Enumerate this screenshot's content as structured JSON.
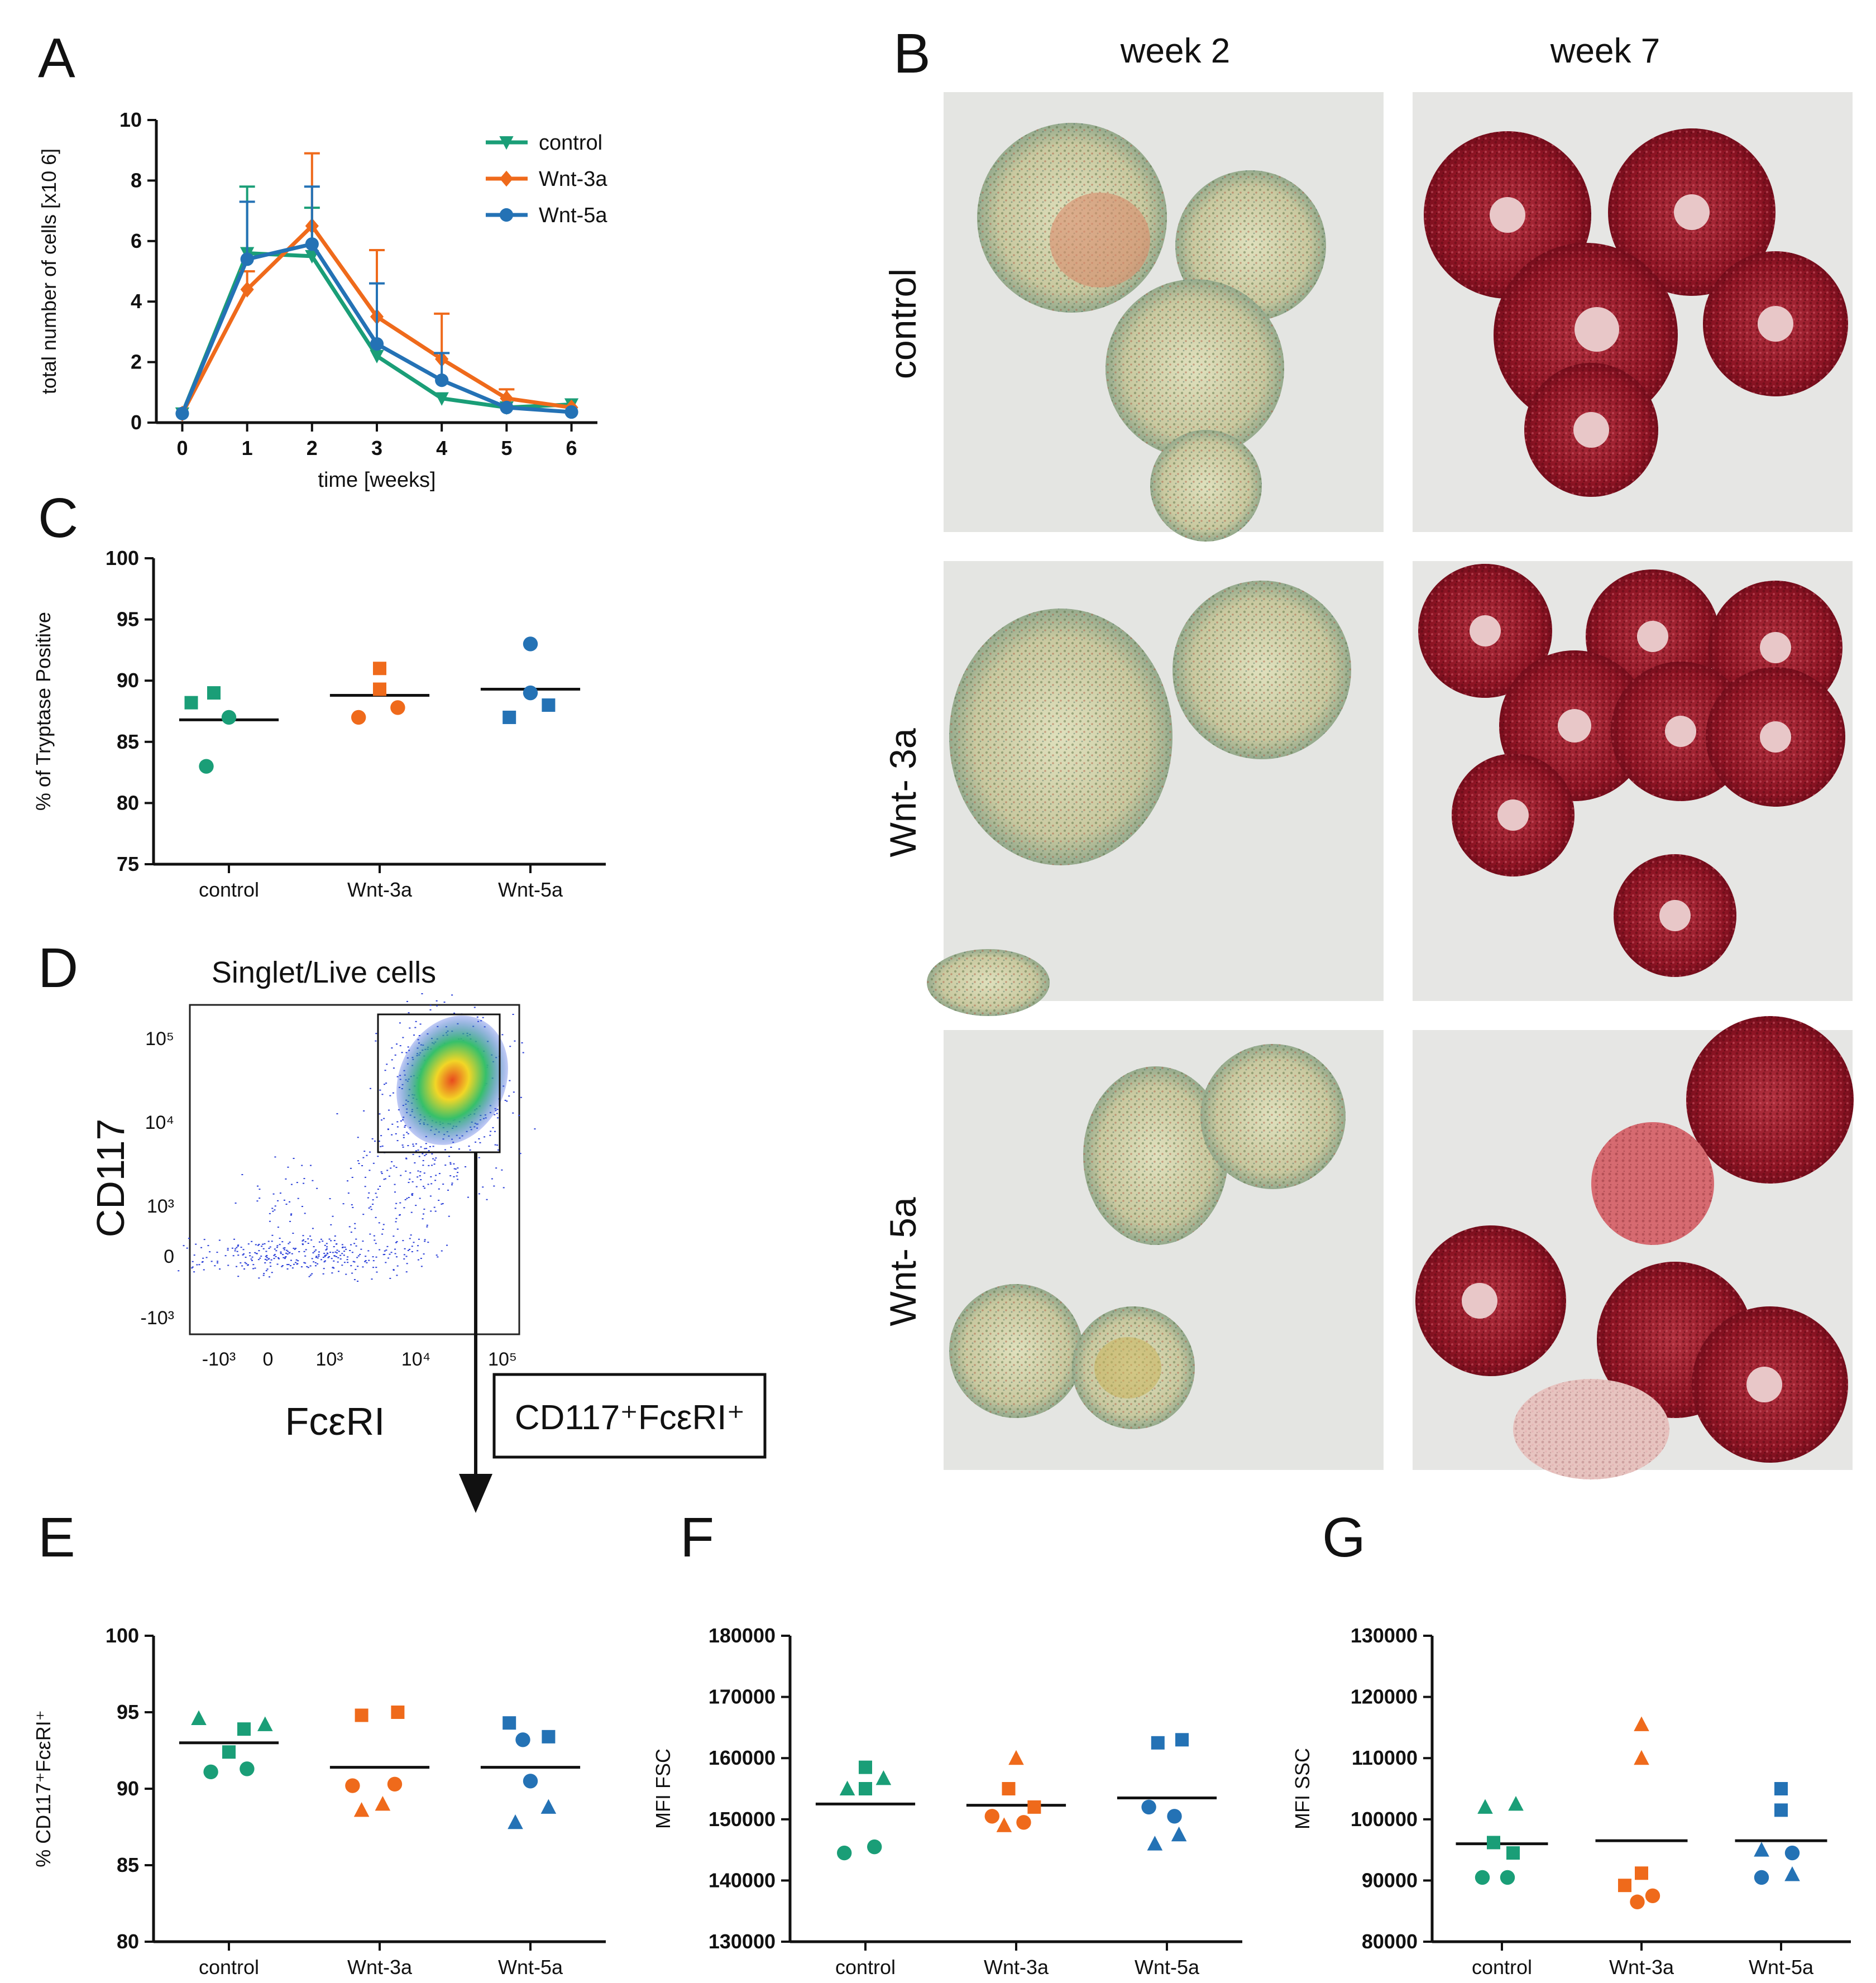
{
  "panels": {
    "A": "A",
    "B": "B",
    "C": "C",
    "D": "D",
    "E": "E",
    "F": "F",
    "G": "G"
  },
  "colors": {
    "control": "#1a9e77",
    "wnt3a": "#ef6a1b",
    "wnt5a": "#2472b5",
    "axis": "#111111"
  },
  "chart_data": [
    {
      "id": "A",
      "type": "line",
      "xlabel": "time [weeks]",
      "ylabel": "total number of cells [x10 6]",
      "x": [
        0,
        1,
        2,
        3,
        4,
        5,
        6
      ],
      "xlim": [
        -0.4,
        6.4
      ],
      "ylim": [
        0,
        10
      ],
      "yticks": [
        0,
        2,
        4,
        6,
        8,
        10
      ],
      "legend": "top-right",
      "series": [
        {
          "name": "control",
          "marker": "triangle-down",
          "values": [
            0.3,
            5.6,
            5.5,
            2.2,
            0.8,
            0.5,
            0.6
          ],
          "err": [
            0,
            2.2,
            1.6,
            0,
            0,
            0,
            0
          ]
        },
        {
          "name": "Wnt-3a",
          "marker": "diamond",
          "values": [
            0.3,
            4.4,
            6.5,
            3.5,
            2.1,
            0.8,
            0.5
          ],
          "err": [
            0,
            0.6,
            2.4,
            2.2,
            1.5,
            0.3,
            0
          ]
        },
        {
          "name": "Wnt-5a",
          "marker": "circle",
          "values": [
            0.3,
            5.4,
            5.9,
            2.6,
            1.4,
            0.5,
            0.35
          ],
          "err": [
            0,
            1.9,
            1.9,
            2.0,
            0.9,
            0,
            0
          ]
        }
      ]
    },
    {
      "id": "C",
      "type": "scatter",
      "ylabel": "% of Tryptase Positive",
      "categories": [
        "control",
        "Wnt-3a",
        "Wnt-5a"
      ],
      "ylim": [
        75,
        100
      ],
      "yticks": [
        75,
        80,
        85,
        90,
        95,
        100
      ],
      "means": [
        86.8,
        88.8,
        89.3
      ],
      "points": [
        {
          "group": 0,
          "dx": -0.25,
          "y": 88.2,
          "shape": "square"
        },
        {
          "group": 0,
          "dx": -0.1,
          "y": 89.0,
          "shape": "square"
        },
        {
          "group": 0,
          "dx": 0.0,
          "y": 87.0,
          "shape": "circle"
        },
        {
          "group": 0,
          "dx": -0.15,
          "y": 83.0,
          "shape": "circle"
        },
        {
          "group": 1,
          "dx": 0.0,
          "y": 91.0,
          "shape": "square"
        },
        {
          "group": 1,
          "dx": 0.0,
          "y": 89.3,
          "shape": "square"
        },
        {
          "group": 1,
          "dx": 0.12,
          "y": 87.8,
          "shape": "circle"
        },
        {
          "group": 1,
          "dx": -0.14,
          "y": 87.0,
          "shape": "circle"
        },
        {
          "group": 2,
          "dx": 0.0,
          "y": 93.0,
          "shape": "circle"
        },
        {
          "group": 2,
          "dx": 0.0,
          "y": 89.0,
          "shape": "circle"
        },
        {
          "group": 2,
          "dx": 0.12,
          "y": 88.0,
          "shape": "square"
        },
        {
          "group": 2,
          "dx": -0.14,
          "y": 87.0,
          "shape": "square"
        }
      ]
    },
    {
      "id": "D",
      "type": "scatter",
      "title": "Singlet/Live cells",
      "xlabel": "FcεRI",
      "ylabel": "CD117",
      "xticks": [
        "-10³",
        "0",
        "10³",
        "10⁴",
        "10⁵"
      ],
      "yticks": [
        "10⁵",
        "10⁴",
        "10³",
        "0",
        "-10³"
      ],
      "gate_label": "CD117⁺FcεRI⁺"
    },
    {
      "id": "E",
      "type": "scatter",
      "ylabel": "% CD117⁺FcεRI⁺",
      "categories": [
        "control",
        "Wnt-3a",
        "Wnt-5a"
      ],
      "ylim": [
        80,
        100
      ],
      "yticks": [
        80,
        85,
        90,
        95,
        100
      ],
      "means": [
        93.0,
        91.4,
        91.4
      ],
      "points": [
        {
          "group": 0,
          "dx": -0.2,
          "y": 94.6,
          "shape": "triangle"
        },
        {
          "group": 0,
          "dx": 0.1,
          "y": 93.9,
          "shape": "square"
        },
        {
          "group": 0,
          "dx": 0.0,
          "y": 92.4,
          "shape": "square"
        },
        {
          "group": 0,
          "dx": -0.12,
          "y": 91.1,
          "shape": "circle"
        },
        {
          "group": 0,
          "dx": 0.12,
          "y": 91.3,
          "shape": "circle"
        },
        {
          "group": 0,
          "dx": 0.24,
          "y": 94.2,
          "shape": "triangle"
        },
        {
          "group": 1,
          "dx": -0.12,
          "y": 94.8,
          "shape": "square"
        },
        {
          "group": 1,
          "dx": 0.12,
          "y": 95.0,
          "shape": "square"
        },
        {
          "group": 1,
          "dx": -0.18,
          "y": 90.2,
          "shape": "circle"
        },
        {
          "group": 1,
          "dx": 0.1,
          "y": 90.3,
          "shape": "circle"
        },
        {
          "group": 1,
          "dx": -0.12,
          "y": 88.6,
          "shape": "triangle"
        },
        {
          "group": 1,
          "dx": 0.02,
          "y": 89.0,
          "shape": "triangle"
        },
        {
          "group": 2,
          "dx": -0.14,
          "y": 94.3,
          "shape": "square"
        },
        {
          "group": 2,
          "dx": 0.12,
          "y": 93.4,
          "shape": "square"
        },
        {
          "group": 2,
          "dx": -0.05,
          "y": 93.2,
          "shape": "circle"
        },
        {
          "group": 2,
          "dx": 0.0,
          "y": 90.5,
          "shape": "circle"
        },
        {
          "group": 2,
          "dx": 0.12,
          "y": 88.8,
          "shape": "triangle"
        },
        {
          "group": 2,
          "dx": -0.1,
          "y": 87.8,
          "shape": "triangle"
        }
      ]
    },
    {
      "id": "F",
      "type": "scatter",
      "ylabel": "MFI FSC",
      "categories": [
        "control",
        "Wnt-3a",
        "Wnt-5a"
      ],
      "ylim": [
        130000,
        180000
      ],
      "yticks": [
        130000,
        140000,
        150000,
        160000,
        170000,
        180000
      ],
      "means": [
        152500,
        152300,
        153500
      ],
      "points": [
        {
          "group": 0,
          "dx": 0.0,
          "y": 158500,
          "shape": "square"
        },
        {
          "group": 0,
          "dx": 0.12,
          "y": 156700,
          "shape": "triangle"
        },
        {
          "group": 0,
          "dx": -0.12,
          "y": 155000,
          "shape": "triangle"
        },
        {
          "group": 0,
          "dx": 0.0,
          "y": 155000,
          "shape": "square"
        },
        {
          "group": 0,
          "dx": -0.14,
          "y": 144500,
          "shape": "circle"
        },
        {
          "group": 0,
          "dx": 0.06,
          "y": 145500,
          "shape": "circle"
        },
        {
          "group": 1,
          "dx": 0.0,
          "y": 160000,
          "shape": "triangle"
        },
        {
          "group": 1,
          "dx": -0.05,
          "y": 155000,
          "shape": "square"
        },
        {
          "group": 1,
          "dx": 0.12,
          "y": 152000,
          "shape": "square"
        },
        {
          "group": 1,
          "dx": -0.16,
          "y": 150500,
          "shape": "circle"
        },
        {
          "group": 1,
          "dx": 0.05,
          "y": 149500,
          "shape": "circle"
        },
        {
          "group": 1,
          "dx": -0.08,
          "y": 149000,
          "shape": "triangle"
        },
        {
          "group": 2,
          "dx": -0.06,
          "y": 162500,
          "shape": "square"
        },
        {
          "group": 2,
          "dx": 0.1,
          "y": 163000,
          "shape": "square"
        },
        {
          "group": 2,
          "dx": -0.12,
          "y": 152000,
          "shape": "circle"
        },
        {
          "group": 2,
          "dx": 0.05,
          "y": 150500,
          "shape": "circle"
        },
        {
          "group": 2,
          "dx": 0.08,
          "y": 147500,
          "shape": "triangle"
        },
        {
          "group": 2,
          "dx": -0.08,
          "y": 146000,
          "shape": "triangle"
        }
      ]
    },
    {
      "id": "G",
      "type": "scatter",
      "ylabel": "MFI SSC",
      "categories": [
        "control",
        "Wnt-3a",
        "Wnt-5a"
      ],
      "ylim": [
        80000,
        130000
      ],
      "yticks": [
        80000,
        90000,
        100000,
        110000,
        120000,
        130000
      ],
      "means": [
        96000,
        96500,
        96500
      ],
      "points": [
        {
          "group": 0,
          "dx": -0.12,
          "y": 102000,
          "shape": "triangle"
        },
        {
          "group": 0,
          "dx": 0.1,
          "y": 102500,
          "shape": "triangle"
        },
        {
          "group": 0,
          "dx": -0.06,
          "y": 96200,
          "shape": "square"
        },
        {
          "group": 0,
          "dx": 0.08,
          "y": 94500,
          "shape": "square"
        },
        {
          "group": 0,
          "dx": -0.14,
          "y": 90500,
          "shape": "circle"
        },
        {
          "group": 0,
          "dx": 0.04,
          "y": 90500,
          "shape": "circle"
        },
        {
          "group": 1,
          "dx": 0.0,
          "y": 115500,
          "shape": "triangle"
        },
        {
          "group": 1,
          "dx": 0.0,
          "y": 110000,
          "shape": "triangle"
        },
        {
          "group": 1,
          "dx": 0.0,
          "y": 91200,
          "shape": "square"
        },
        {
          "group": 1,
          "dx": -0.12,
          "y": 89200,
          "shape": "square"
        },
        {
          "group": 1,
          "dx": 0.08,
          "y": 87500,
          "shape": "circle"
        },
        {
          "group": 1,
          "dx": -0.03,
          "y": 86500,
          "shape": "circle"
        },
        {
          "group": 2,
          "dx": 0.0,
          "y": 105000,
          "shape": "square"
        },
        {
          "group": 2,
          "dx": 0.0,
          "y": 101500,
          "shape": "square"
        },
        {
          "group": 2,
          "dx": -0.14,
          "y": 95000,
          "shape": "triangle"
        },
        {
          "group": 2,
          "dx": 0.08,
          "y": 94500,
          "shape": "circle"
        },
        {
          "group": 2,
          "dx": -0.14,
          "y": 90500,
          "shape": "circle"
        },
        {
          "group": 2,
          "dx": 0.08,
          "y": 91000,
          "shape": "triangle"
        }
      ]
    }
  ],
  "micrographs": {
    "columns": [
      "week 2",
      "week 7"
    ],
    "rows": [
      "control",
      "Wnt- 3a",
      "Wnt- 5a"
    ]
  }
}
